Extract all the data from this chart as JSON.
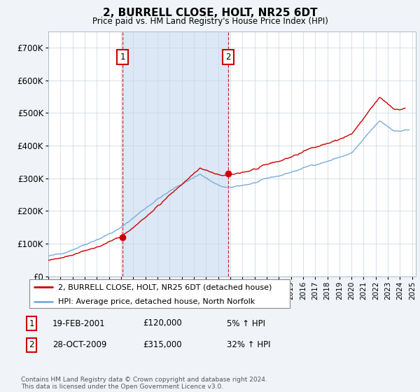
{
  "title": "2, BURRELL CLOSE, HOLT, NR25 6DT",
  "subtitle": "Price paid vs. HM Land Registry's House Price Index (HPI)",
  "legend_property": "2, BURRELL CLOSE, HOLT, NR25 6DT (detached house)",
  "legend_hpi": "HPI: Average price, detached house, North Norfolk",
  "sale1_label": "1",
  "sale1_date": "19-FEB-2001",
  "sale1_price": "£120,000",
  "sale1_pct": "5% ↑ HPI",
  "sale1_year": 2001.13,
  "sale1_value": 120000,
  "sale2_label": "2",
  "sale2_date": "28-OCT-2009",
  "sale2_price": "£315,000",
  "sale2_pct": "32% ↑ HPI",
  "sale2_year": 2009.83,
  "sale2_value": 315000,
  "property_color": "#cc0000",
  "hpi_color": "#7aabdc",
  "shade_color": "#dce8f5",
  "background_color": "#f0f4f8",
  "plot_bg_color": "#ffffff",
  "ylim": [
    0,
    750000
  ],
  "yticks": [
    0,
    100000,
    200000,
    300000,
    400000,
    500000,
    600000,
    700000
  ],
  "ytick_labels": [
    "£0",
    "£100K",
    "£200K",
    "£300K",
    "£400K",
    "£500K",
    "£600K",
    "£700K"
  ],
  "footer": "Contains HM Land Registry data © Crown copyright and database right 2024.\nThis data is licensed under the Open Government Licence v3.0."
}
